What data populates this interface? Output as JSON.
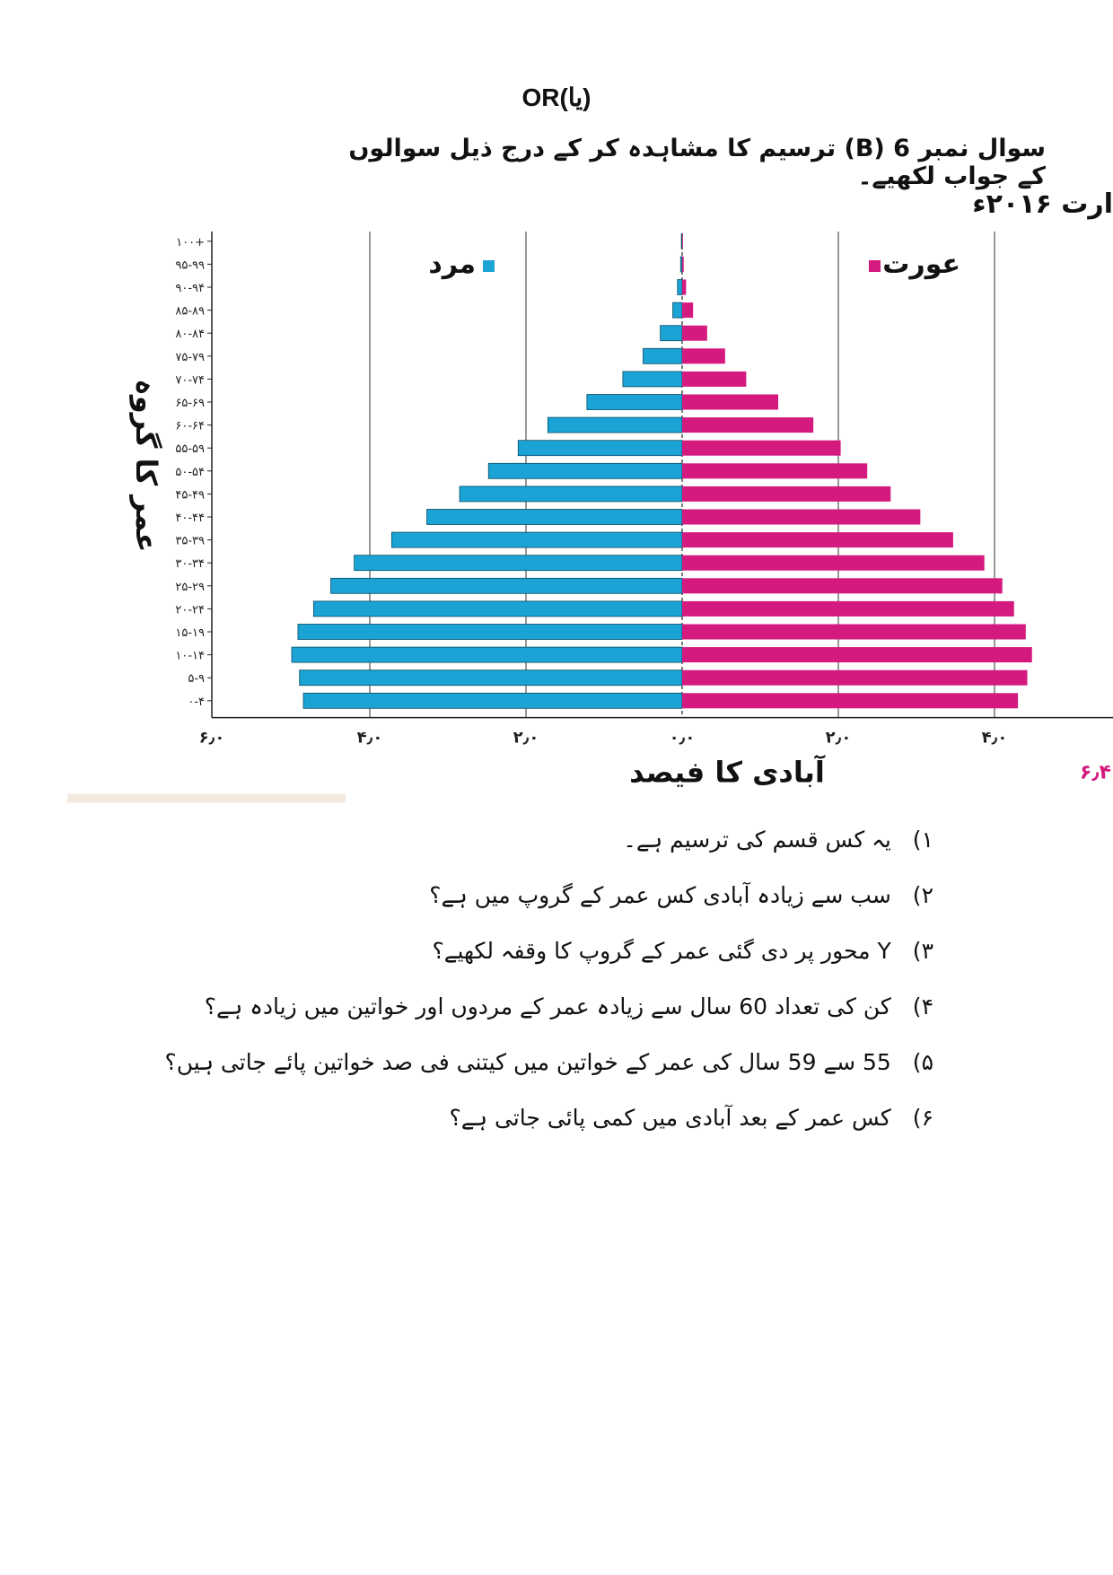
{
  "header": {
    "or_text": "(یا)OR",
    "question_heading": "سوال نمبر 6 (B) ترسیم کا مشاہدہ کر کے درج ذیل سوالوں کے جواب لکھیے۔",
    "chart_caption": "ارت ۲۰۱۶ء"
  },
  "chart_data": {
    "type": "bar",
    "orientation": "horizontal-population-pyramid",
    "title": "",
    "xlabel": "آبادی کا فیصد",
    "ylabel": "عمر کا گروہ",
    "categories": [
      "۰-۴",
      "۵-۹",
      "۱۰-۱۴",
      "۱۵-۱۹",
      "۲۰-۲۴",
      "۲۵-۲۹",
      "۳۰-۳۴",
      "۳۵-۳۹",
      "۴۰-۴۴",
      "۴۵-۴۹",
      "۵۰-۵۴",
      "۵۵-۵۹",
      "۶۰-۶۴",
      "۶۵-۶۹",
      "۷۰-۷۴",
      "۷۵-۷۹",
      "۸۰-۸۴",
      "۸۵-۸۹",
      "۹۰-۹۴",
      "۹۵-۹۹",
      "۱۰۰+"
    ],
    "series": [
      {
        "name": "مرد",
        "color": "#1aa3d4",
        "values": [
          4.85,
          4.9,
          5.0,
          4.92,
          4.72,
          4.5,
          4.2,
          3.72,
          3.27,
          2.85,
          2.48,
          2.1,
          1.72,
          1.22,
          0.76,
          0.5,
          0.28,
          0.12,
          0.06,
          0.02,
          0.01
        ]
      },
      {
        "name": "عورت",
        "color": "#d4197f",
        "values": [
          4.3,
          4.42,
          4.48,
          4.4,
          4.25,
          4.1,
          3.87,
          3.47,
          3.05,
          2.67,
          2.37,
          2.03,
          1.68,
          1.23,
          0.82,
          0.55,
          0.32,
          0.14,
          0.05,
          0.02,
          0.01
        ]
      }
    ],
    "xlim": [
      -6.0,
      6.0
    ],
    "xticks": [
      "۶٫۰",
      "۴٫۰",
      "۲٫۰",
      "۰٫۰",
      "۲٫۰",
      "۴٫۰"
    ],
    "extra_label": "۶٫۴",
    "grid": true
  },
  "questions": [
    {
      "num": "۱)",
      "text": "یہ کس قسم کی ترسیم ہے۔"
    },
    {
      "num": "۲)",
      "text": "سب سے زیادہ آبادی کس عمر کے گروپ میں ہے؟"
    },
    {
      "num": "۳)",
      "text": "Y محور پر دی گئی عمر کے گروپ کا وقفہ لکھیے؟"
    },
    {
      "num": "۴)",
      "text": "کن کی تعداد 60 سال سے زیادہ عمر کے مردوں اور خواتین میں زیادہ ہے؟"
    },
    {
      "num": "۵)",
      "text": "55 سے 59 سال کی عمر کے خواتین میں کیتنی فی صد خواتین پائے جاتی ہیں؟"
    },
    {
      "num": "۶)",
      "text": "کس عمر کے بعد آبادی میں کمی پائی جاتی ہے؟"
    }
  ]
}
